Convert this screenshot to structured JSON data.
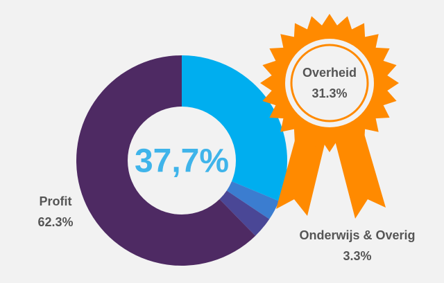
{
  "chart_data": {
    "type": "pie",
    "annotation": "37,7%",
    "categories": [
      "Overheid",
      null,
      "Onderwijs & Overig",
      "Profit"
    ],
    "values": [
      31.3,
      3.1,
      3.3,
      62.3
    ],
    "value_labels": [
      "31.3%",
      null,
      "3.3%",
      "62.3%"
    ],
    "colors": [
      "#00aeef",
      "#3b7dd0",
      "#4a4796",
      "#4e2a63"
    ]
  }
}
